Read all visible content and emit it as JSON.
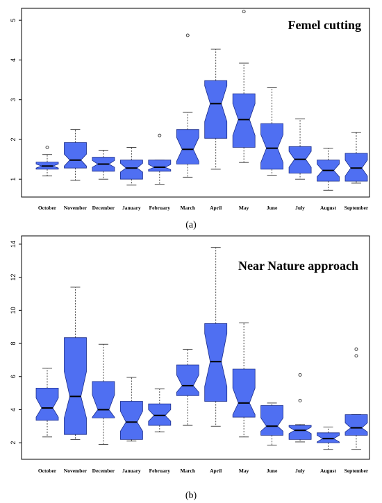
{
  "chart_data": [
    {
      "type": "boxplot",
      "title": "Femel cutting",
      "panel_label": "(a)",
      "categories": [
        "October",
        "November",
        "December",
        "January",
        "February",
        "March",
        "April",
        "May",
        "June",
        "July",
        "August",
        "September"
      ],
      "yticks": [
        1,
        2,
        3,
        4,
        5
      ],
      "ylim": [
        0.55,
        5.3
      ],
      "boxes": [
        {
          "min": 1.08,
          "q1": 1.25,
          "median": 1.33,
          "q3": 1.43,
          "max": 1.62,
          "notch_low": 1.28,
          "notch_high": 1.38,
          "outliers": [
            1.8
          ]
        },
        {
          "min": 0.97,
          "q1": 1.28,
          "median": 1.48,
          "q3": 1.92,
          "max": 2.25,
          "notch_low": 1.33,
          "notch_high": 1.63,
          "outliers": []
        },
        {
          "min": 1.0,
          "q1": 1.2,
          "median": 1.38,
          "q3": 1.55,
          "max": 1.73,
          "notch_low": 1.3,
          "notch_high": 1.47,
          "outliers": []
        },
        {
          "min": 0.85,
          "q1": 1.0,
          "median": 1.28,
          "q3": 1.48,
          "max": 1.8,
          "notch_low": 1.18,
          "notch_high": 1.4,
          "outliers": []
        },
        {
          "min": 0.87,
          "q1": 1.2,
          "median": 1.3,
          "q3": 1.48,
          "max": 1.48,
          "notch_low": 1.24,
          "notch_high": 1.37,
          "outliers": [
            2.1
          ]
        },
        {
          "min": 1.05,
          "q1": 1.38,
          "median": 1.75,
          "q3": 2.25,
          "max": 2.68,
          "notch_low": 1.45,
          "notch_high": 2.05,
          "outliers": [
            4.62
          ]
        },
        {
          "min": 1.25,
          "q1": 2.03,
          "median": 2.9,
          "q3": 3.48,
          "max": 4.27,
          "notch_low": 2.45,
          "notch_high": 3.35,
          "outliers": []
        },
        {
          "min": 1.42,
          "q1": 1.8,
          "median": 2.5,
          "q3": 3.15,
          "max": 3.92,
          "notch_low": 2.1,
          "notch_high": 2.9,
          "outliers": [
            5.22
          ]
        },
        {
          "min": 1.1,
          "q1": 1.25,
          "median": 1.78,
          "q3": 2.4,
          "max": 3.3,
          "notch_low": 1.42,
          "notch_high": 2.12,
          "outliers": []
        },
        {
          "min": 1.0,
          "q1": 1.15,
          "median": 1.5,
          "q3": 1.82,
          "max": 2.52,
          "notch_low": 1.3,
          "notch_high": 1.7,
          "outliers": []
        },
        {
          "min": 0.72,
          "q1": 0.95,
          "median": 1.22,
          "q3": 1.48,
          "max": 1.78,
          "notch_low": 1.06,
          "notch_high": 1.38,
          "outliers": []
        },
        {
          "min": 0.9,
          "q1": 0.95,
          "median": 1.28,
          "q3": 1.65,
          "max": 2.18,
          "notch_low": 1.08,
          "notch_high": 1.48,
          "outliers": []
        }
      ]
    },
    {
      "type": "boxplot",
      "title": "Near Nature approach",
      "panel_label": "(b)",
      "categories": [
        "October",
        "November",
        "December",
        "January",
        "February",
        "March",
        "April",
        "May",
        "June",
        "July",
        "August",
        "September"
      ],
      "yticks": [
        2,
        4,
        6,
        8,
        10,
        12,
        14
      ],
      "ylim": [
        1.0,
        14.5
      ],
      "boxes": [
        {
          "min": 2.35,
          "q1": 3.35,
          "median": 4.1,
          "q3": 5.3,
          "max": 6.5,
          "notch_low": 3.55,
          "notch_high": 4.7,
          "outliers": []
        },
        {
          "min": 2.2,
          "q1": 2.5,
          "median": 4.8,
          "q3": 8.35,
          "max": 11.4,
          "notch_low": 3.5,
          "notch_high": 6.3,
          "outliers": []
        },
        {
          "min": 1.9,
          "q1": 3.5,
          "median": 4.0,
          "q3": 5.7,
          "max": 7.95,
          "notch_low": 3.55,
          "notch_high": 4.9,
          "outliers": []
        },
        {
          "min": 2.1,
          "q1": 2.2,
          "median": 3.25,
          "q3": 4.5,
          "max": 5.95,
          "notch_low": 2.7,
          "notch_high": 3.9,
          "outliers": []
        },
        {
          "min": 2.65,
          "q1": 3.05,
          "median": 3.65,
          "q3": 4.35,
          "max": 5.25,
          "notch_low": 3.3,
          "notch_high": 4.0,
          "outliers": []
        },
        {
          "min": 3.05,
          "q1": 4.85,
          "median": 5.45,
          "q3": 6.7,
          "max": 7.65,
          "notch_low": 5.05,
          "notch_high": 6.1,
          "outliers": []
        },
        {
          "min": 3.0,
          "q1": 4.5,
          "median": 6.9,
          "q3": 9.2,
          "max": 13.8,
          "notch_low": 5.4,
          "notch_high": 8.6,
          "outliers": []
        },
        {
          "min": 2.35,
          "q1": 3.55,
          "median": 4.4,
          "q3": 6.45,
          "max": 9.25,
          "notch_low": 3.7,
          "notch_high": 5.3,
          "outliers": []
        },
        {
          "min": 1.85,
          "q1": 2.45,
          "median": 3.0,
          "q3": 4.25,
          "max": 4.4,
          "notch_low": 2.7,
          "notch_high": 3.5,
          "outliers": []
        },
        {
          "min": 2.05,
          "q1": 2.2,
          "median": 2.75,
          "q3": 3.05,
          "max": 3.1,
          "notch_low": 2.55,
          "notch_high": 2.95,
          "outliers": [
            4.55,
            6.1
          ]
        },
        {
          "min": 1.6,
          "q1": 2.0,
          "median": 2.25,
          "q3": 2.6,
          "max": 2.95,
          "notch_low": 2.05,
          "notch_high": 2.45,
          "outliers": []
        },
        {
          "min": 1.6,
          "q1": 2.45,
          "median": 2.9,
          "q3": 3.7,
          "max": 3.7,
          "notch_low": 2.65,
          "notch_high": 3.2,
          "outliers": [
            7.25,
            7.65
          ]
        }
      ]
    }
  ]
}
